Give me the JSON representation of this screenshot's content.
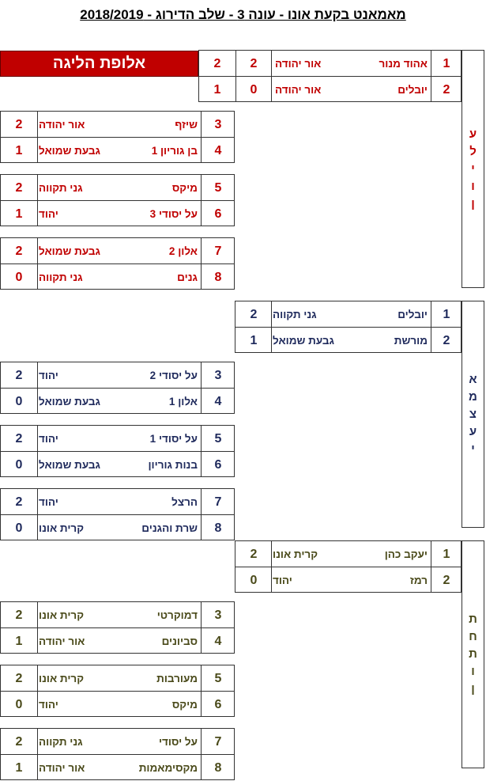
{
  "title": "מאמאנט בקעת אונו - עונה 3 - שלב הדירוג - 2018/2019",
  "champion_label": "אלופת הליגה",
  "colors": {
    "ilit": "#c00000",
    "emtzai": "#1f2a5c",
    "tachton": "#4a4a1a"
  },
  "groups": [
    {
      "name_letters": [
        "ע",
        "ל",
        "י",
        "ו",
        "ן"
      ],
      "top": [
        {
          "rank": "1",
          "team": "אהוד מנור",
          "city": "אור יהודה",
          "s1": "2",
          "s2": "2"
        },
        {
          "rank": "2",
          "team": "יובלים",
          "city": "אור יהודה",
          "s1": "0",
          "s2": "1"
        }
      ],
      "pairs": [
        [
          {
            "rank": "3",
            "team": "שיזף",
            "city": "אור יהודה",
            "score": "2"
          },
          {
            "rank": "4",
            "team": "בן גוריון 1",
            "city": "גבעת שמואל",
            "score": "1"
          }
        ],
        [
          {
            "rank": "5",
            "team": "מיקס",
            "city": "גני תקווה",
            "score": "2"
          },
          {
            "rank": "6",
            "team": "על יסודי 3",
            "city": "יהוד",
            "score": "1"
          }
        ],
        [
          {
            "rank": "7",
            "team": "אלון 2",
            "city": "גבעת שמואל",
            "score": "2"
          },
          {
            "rank": "8",
            "team": "גנים",
            "city": "גני תקווה",
            "score": "0"
          }
        ]
      ]
    },
    {
      "name_letters": [
        "א",
        "מ",
        "צ",
        "ע",
        "י"
      ],
      "top": [
        {
          "rank": "1",
          "team": "יובלים",
          "city": "גני תקווה",
          "s1": "2"
        },
        {
          "rank": "2",
          "team": "מורשת",
          "city": "גבעת שמואל",
          "s1": "1"
        }
      ],
      "pairs": [
        [
          {
            "rank": "3",
            "team": "על יסודי 2",
            "city": "יהוד",
            "score": "2"
          },
          {
            "rank": "4",
            "team": "אלון 1",
            "city": "גבעת שמואל",
            "score": "0"
          }
        ],
        [
          {
            "rank": "5",
            "team": "על יסודי 1",
            "city": "יהוד",
            "score": "2"
          },
          {
            "rank": "6",
            "team": "בנות גוריון",
            "city": "גבעת שמואל",
            "score": "0"
          }
        ],
        [
          {
            "rank": "7",
            "team": "הרצל",
            "city": "יהוד",
            "score": "2"
          },
          {
            "rank": "8",
            "team": "שרת והגנים",
            "city": "קרית אונו",
            "score": "0"
          }
        ]
      ]
    },
    {
      "name_letters": [
        "ת",
        "ח",
        "ת",
        "ו",
        "ן"
      ],
      "top": [
        {
          "rank": "1",
          "team": "יעקב כהן",
          "city": "קרית אונו",
          "s1": "2"
        },
        {
          "rank": "2",
          "team": "רמז",
          "city": "יהוד",
          "s1": "0"
        }
      ],
      "pairs": [
        [
          {
            "rank": "3",
            "team": "דמוקרטי",
            "city": "קרית אונו",
            "score": "2"
          },
          {
            "rank": "4",
            "team": "סביונים",
            "city": "אור יהודה",
            "score": "1"
          }
        ],
        [
          {
            "rank": "5",
            "team": "מעורבות",
            "city": "קרית אונו",
            "score": "2"
          },
          {
            "rank": "6",
            "team": "מיקס",
            "city": "יהוד",
            "score": "0"
          }
        ],
        [
          {
            "rank": "7",
            "team": "על יסודי",
            "city": "גני תקווה",
            "score": "2"
          },
          {
            "rank": "8",
            "team": "מקסימאמות",
            "city": "אור יהודה",
            "score": "1"
          }
        ]
      ]
    }
  ]
}
